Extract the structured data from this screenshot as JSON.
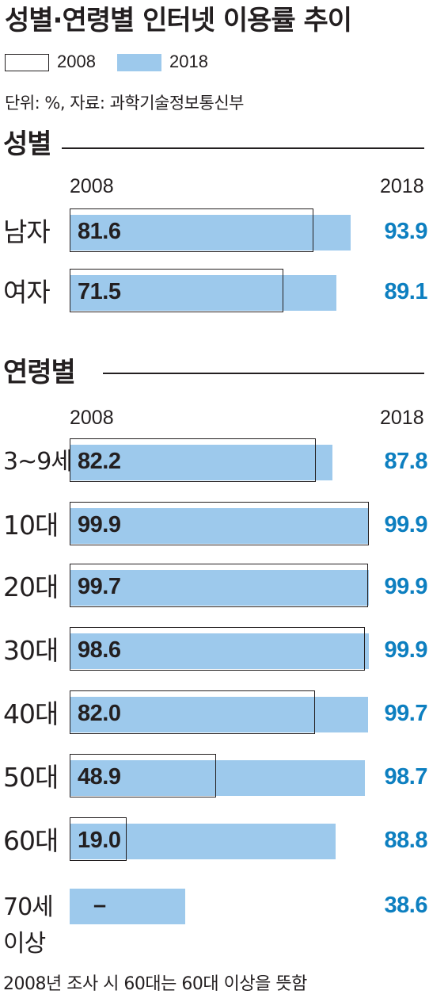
{
  "title": "성별·연령별 인터넷 이용률 추이",
  "legend": {
    "label_2008": "2008",
    "label_2018": "2018"
  },
  "unit_source": "단위: %, 자료: 과학기술정보통신부",
  "footnote": "2008년 조사 시 60대는 60대 이상을 뜻함",
  "colors": {
    "bar_2018": "#9dc9ec",
    "value_2018": "#0d7fc0",
    "text": "#231f20"
  },
  "chart_data": [
    {
      "type": "bar",
      "title": "성별",
      "year_labels": [
        "2008",
        "2018"
      ],
      "categories": [
        "남자",
        "여자"
      ],
      "series": [
        {
          "name": "2008",
          "values": [
            81.6,
            71.5
          ],
          "labels": [
            "81.6",
            "71.5"
          ]
        },
        {
          "name": "2018",
          "values": [
            93.9,
            89.1
          ],
          "labels": [
            "93.9",
            "89.1"
          ]
        }
      ],
      "xlim": [
        0,
        100
      ]
    },
    {
      "type": "bar",
      "title": "연령별",
      "year_labels": [
        "2008",
        "2018"
      ],
      "categories": [
        "3~9세",
        "10대",
        "20대",
        "30대",
        "40대",
        "50대",
        "60대",
        "70세 이상"
      ],
      "series": [
        {
          "name": "2008",
          "values": [
            82.2,
            99.9,
            99.7,
            98.6,
            82.0,
            48.9,
            19.0,
            null
          ],
          "labels": [
            "82.2",
            "99.9",
            "99.7",
            "98.6",
            "82.0",
            "48.9",
            "19.0",
            "–"
          ]
        },
        {
          "name": "2018",
          "values": [
            87.8,
            99.9,
            99.9,
            99.9,
            99.7,
            98.7,
            88.8,
            38.6
          ],
          "labels": [
            "87.8",
            "99.9",
            "99.9",
            "99.9",
            "99.7",
            "98.7",
            "88.8",
            "38.6"
          ]
        }
      ],
      "xlim": [
        0,
        100
      ]
    }
  ]
}
